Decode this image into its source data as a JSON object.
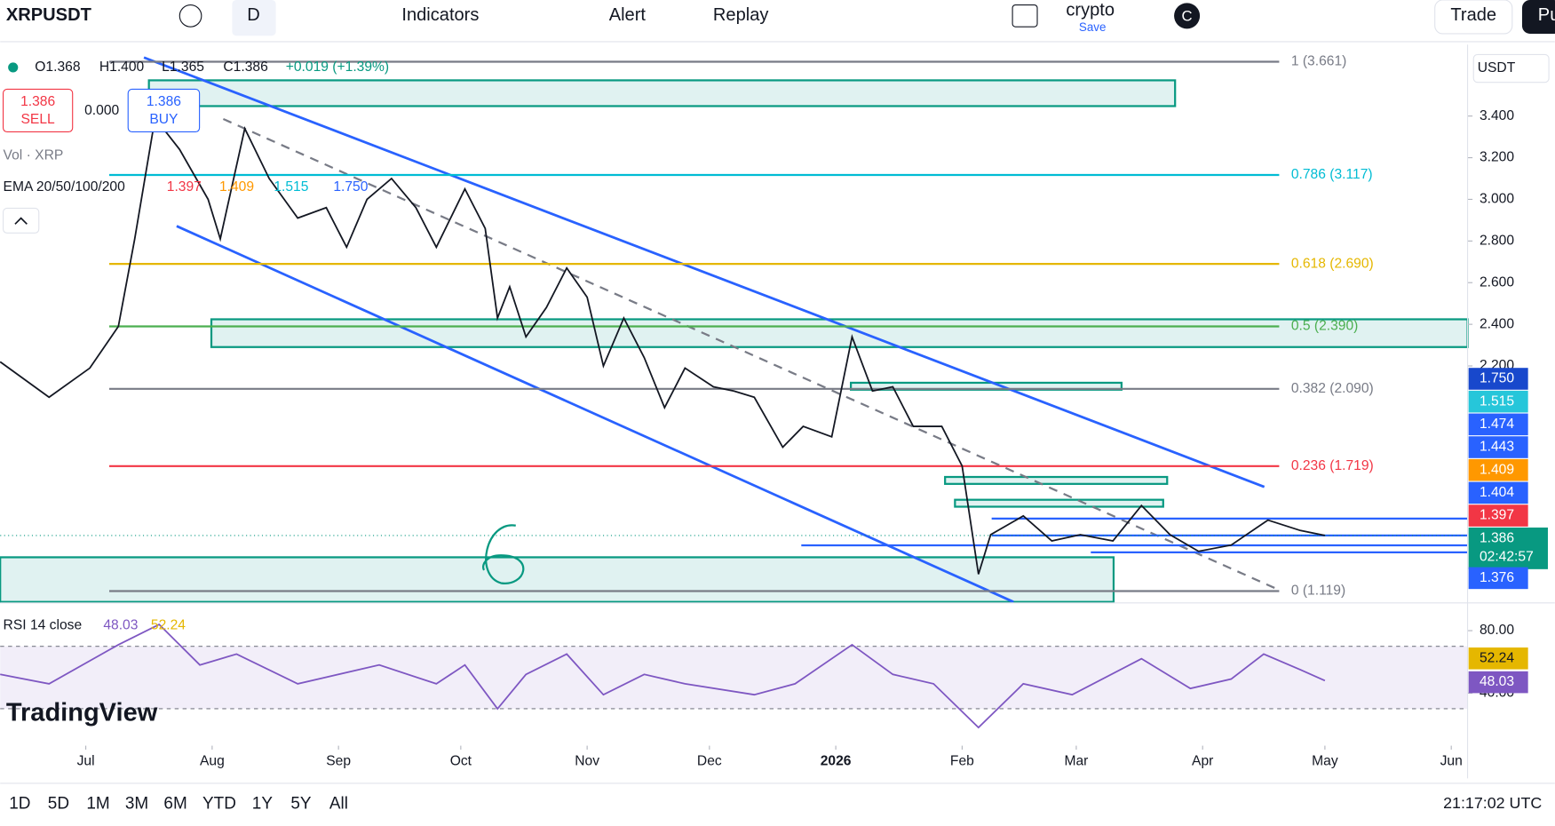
{
  "toolbar": {
    "symbol": "XRPUSDT",
    "interval": "D",
    "indicators": "Indicators",
    "alert": "Alert",
    "replay": "Replay",
    "layout_name": "crypto",
    "save": "Save",
    "avatar": "C",
    "trade": "Trade",
    "publish": "Pu"
  },
  "legend": {
    "open": "O1.368",
    "high": "H1.400",
    "low": "L1.365",
    "close": "C1.386",
    "change": "+0.019 (+1.39%)",
    "sell_price": "1.386",
    "sell": "SELL",
    "spread": "0.000",
    "buy_price": "1.386",
    "buy": "BUY",
    "volume": "Vol · XRP",
    "ema_name": "EMA 20/50/100/200",
    "ema_values": [
      {
        "text": "1.397",
        "color": "#f23645"
      },
      {
        "text": "1.409",
        "color": "#ff9800"
      },
      {
        "text": "1.515",
        "color": "#00bcd4"
      },
      {
        "text": "1.750",
        "color": "#2962ff"
      }
    ]
  },
  "currency": "USDT",
  "price_labels": [
    {
      "text": "1.750",
      "color": "#1848cc"
    },
    {
      "text": "1.515",
      "color": "#26c6da"
    },
    {
      "text": "1.474",
      "color": "#2962ff"
    },
    {
      "text": "1.443",
      "color": "#2962ff"
    },
    {
      "text": "1.409",
      "color": "#ff9800"
    },
    {
      "text": "1.404",
      "color": "#2962ff"
    },
    {
      "text": "1.397",
      "color": "#f23645"
    },
    {
      "text": "1.386",
      "color": "#089981"
    },
    {
      "text": "1.376",
      "color": "#2962ff"
    }
  ],
  "countdown": "02:42:57",
  "chart_data": [
    {
      "type": "line",
      "color": "#131722",
      "x": [
        -21,
        -9,
        1,
        8,
        12,
        17,
        23,
        30,
        33,
        39,
        45,
        52,
        59,
        64,
        69,
        75,
        81,
        86,
        93,
        98,
        101,
        104,
        108,
        113,
        118,
        123,
        127,
        132,
        137,
        142,
        147,
        154,
        159,
        164,
        171,
        176,
        183,
        188,
        193,
        198,
        203,
        210,
        215,
        219,
        222,
        230,
        237,
        244,
        252,
        259,
        266,
        273,
        281,
        290,
        298,
        304
      ],
      "series": [
        {
          "name": "XRPUSDT",
          "color": "#131722",
          "values": [
            2.22,
            2.05,
            2.19,
            2.39,
            2.81,
            3.39,
            3.24,
            3.0,
            2.81,
            3.34,
            3.1,
            2.91,
            2.96,
            2.77,
            3.0,
            3.1,
            2.96,
            2.77,
            3.05,
            2.86,
            2.43,
            2.58,
            2.34,
            2.48,
            2.67,
            2.53,
            2.2,
            2.43,
            2.24,
            2.0,
            2.19,
            2.1,
            2.08,
            2.05,
            1.81,
            1.91,
            1.86,
            2.34,
            2.08,
            2.1,
            1.91,
            1.91,
            1.72,
            1.2,
            1.39,
            1.48,
            1.36,
            1.39,
            1.36,
            1.53,
            1.39,
            1.31,
            1.34,
            1.46,
            1.41,
            1.386
          ]
        }
      ],
      "last_price": 1.386,
      "xlim": [
        -21,
        339
      ],
      "xticks": [
        {
          "value": 0,
          "label": "Jul"
        },
        {
          "value": 31,
          "label": "Aug"
        },
        {
          "value": 62,
          "label": "Sep"
        },
        {
          "value": 92,
          "label": "Oct"
        },
        {
          "value": 123,
          "label": "Nov"
        },
        {
          "value": 153,
          "label": "Dec"
        },
        {
          "value": 184,
          "label": "2026"
        },
        {
          "value": 215,
          "label": "Feb"
        },
        {
          "value": 243,
          "label": "Mar"
        },
        {
          "value": 274,
          "label": "Apr"
        },
        {
          "value": 304,
          "label": "May"
        },
        {
          "value": 335,
          "label": "Jun"
        }
      ],
      "ylim": [
        1.067,
        3.743
      ],
      "yticks": [
        {
          "value": 3.4,
          "label": "3.400"
        },
        {
          "value": 3.2,
          "label": "3.200"
        },
        {
          "value": 3.0,
          "label": "3.000"
        },
        {
          "value": 2.8,
          "label": "2.800"
        },
        {
          "value": 2.6,
          "label": "2.600"
        },
        {
          "value": 2.4,
          "label": "2.400"
        },
        {
          "value": 2.2,
          "label": "2.200"
        }
      ],
      "levels": [
        {
          "label": "1 (3.661)",
          "value": 3.661,
          "color": "#787b86"
        },
        {
          "label": "0.786 (3.117)",
          "value": 3.117,
          "color": "#00bcd4"
        },
        {
          "label": "0.618 (2.690)",
          "value": 2.69,
          "color": "#e5b700"
        },
        {
          "label": "0.5 (2.390)",
          "value": 2.39,
          "color": "#4caf50"
        },
        {
          "label": "0.382 (2.090)",
          "value": 2.09,
          "color": "#787b86"
        },
        {
          "label": "0.236 (1.719)",
          "value": 1.719,
          "color": "#f23645"
        },
        {
          "label": "0 (1.119)",
          "value": 1.119,
          "color": "#787b86"
        }
      ]
    },
    {
      "type": "line",
      "title": "RSI 14 close",
      "x": [
        -21,
        -9,
        8,
        18,
        28,
        37,
        52,
        72,
        86,
        93,
        101,
        108,
        118,
        127,
        137,
        147,
        164,
        174,
        188,
        198,
        208,
        219,
        230,
        242,
        259,
        271,
        281,
        289,
        298,
        304
      ],
      "series": [
        {
          "name": "RSI",
          "color": "#7e57c2",
          "values": [
            52,
            46,
            71,
            84,
            58,
            65,
            46,
            58,
            46,
            58,
            30,
            52,
            65,
            39,
            52,
            46,
            39,
            46,
            71,
            52,
            46,
            18,
            46,
            39,
            62,
            43,
            49,
            65,
            55,
            48.03
          ]
        }
      ],
      "value_labels": [
        "48.03",
        "52.24"
      ],
      "ma_color": "#e5b700",
      "xlim": [
        -21,
        339
      ],
      "ylim": [
        10.8,
        96.5
      ],
      "yticks": [
        {
          "value": 80,
          "label": "80.00"
        },
        {
          "value": 40,
          "label": "40.00"
        }
      ],
      "band": [
        30,
        70
      ]
    }
  ],
  "brand": "TradingView",
  "ranges": [
    "1D",
    "5D",
    "1M",
    "3M",
    "6M",
    "YTD",
    "1Y",
    "5Y",
    "All"
  ],
  "clock": "21:17:02 UTC"
}
